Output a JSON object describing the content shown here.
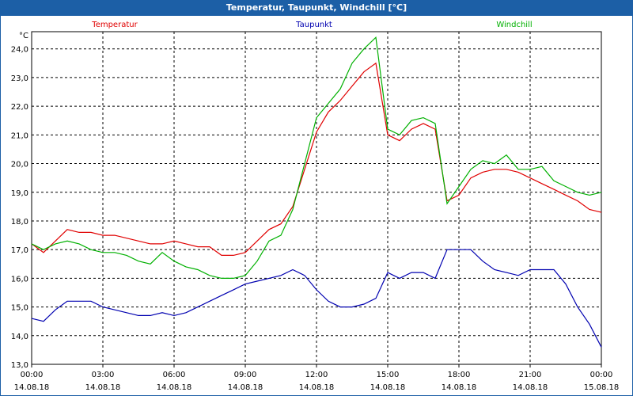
{
  "window": {
    "title": "Temperatur, Taupunkt, Windchill [°C]"
  },
  "chart_data": {
    "type": "line",
    "title": "Temperatur, Taupunkt, Windchill [°C]",
    "unit_label": "°C",
    "ylim": [
      13.0,
      24.6
    ],
    "y_ticks": [
      "13,0",
      "14,0",
      "15,0",
      "16,0",
      "17,0",
      "18,0",
      "19,0",
      "20,0",
      "21,0",
      "22,0",
      "23,0",
      "24,0"
    ],
    "x_ticks": [
      {
        "time": "00:00",
        "date": "14.08.18"
      },
      {
        "time": "03:00",
        "date": "14.08.18"
      },
      {
        "time": "06:00",
        "date": "14.08.18"
      },
      {
        "time": "09:00",
        "date": "14.08.18"
      },
      {
        "time": "12:00",
        "date": "14.08.18"
      },
      {
        "time": "15:00",
        "date": "14.08.18"
      },
      {
        "time": "18:00",
        "date": "14.08.18"
      },
      {
        "time": "21:00",
        "date": "14.08.18"
      },
      {
        "time": "00:00",
        "date": "15.08.18"
      }
    ],
    "x_hours": [
      0,
      0.5,
      1,
      1.5,
      2,
      2.5,
      3,
      3.5,
      4,
      4.5,
      5,
      5.5,
      6,
      6.5,
      7,
      7.5,
      8,
      8.5,
      9,
      9.5,
      10,
      10.5,
      11,
      11.5,
      12,
      12.5,
      13,
      13.5,
      14,
      14.5,
      15,
      15.5,
      16,
      16.5,
      17,
      17.5,
      18,
      18.5,
      19,
      19.5,
      20,
      20.5,
      21,
      21.5,
      22,
      22.5,
      23,
      23.5,
      24
    ],
    "series": [
      {
        "name": "Temperatur",
        "color": "#e00000",
        "values": [
          17.2,
          16.9,
          17.3,
          17.7,
          17.6,
          17.6,
          17.5,
          17.5,
          17.4,
          17.3,
          17.2,
          17.2,
          17.3,
          17.2,
          17.1,
          17.1,
          16.8,
          16.8,
          16.9,
          17.3,
          17.7,
          17.9,
          18.5,
          19.8,
          21.1,
          21.8,
          22.2,
          22.7,
          23.2,
          23.5,
          21.0,
          20.8,
          21.2,
          21.4,
          21.2,
          18.7,
          18.9,
          19.5,
          19.7,
          19.8,
          19.8,
          19.7,
          19.5,
          19.3,
          19.1,
          18.9,
          18.7,
          18.4,
          18.3
        ]
      },
      {
        "name": "Taupunkt",
        "color": "#0000b0",
        "values": [
          14.6,
          14.5,
          14.9,
          15.2,
          15.2,
          15.2,
          15.0,
          14.9,
          14.8,
          14.7,
          14.7,
          14.8,
          14.7,
          14.8,
          15.0,
          15.2,
          15.4,
          15.6,
          15.8,
          15.9,
          16.0,
          16.1,
          16.3,
          16.1,
          15.6,
          15.2,
          15.0,
          15.0,
          15.1,
          15.3,
          16.2,
          16.0,
          16.2,
          16.2,
          16.0,
          17.0,
          17.0,
          17.0,
          16.6,
          16.3,
          16.2,
          16.1,
          16.3,
          16.3,
          16.3,
          15.8,
          15.0,
          14.4,
          13.6
        ]
      },
      {
        "name": "Windchill",
        "color": "#00b000",
        "values": [
          17.2,
          17.0,
          17.2,
          17.3,
          17.2,
          17.0,
          16.9,
          16.9,
          16.8,
          16.6,
          16.5,
          16.9,
          16.6,
          16.4,
          16.3,
          16.1,
          16.0,
          16.0,
          16.1,
          16.6,
          17.3,
          17.5,
          18.4,
          20.0,
          21.6,
          22.1,
          22.6,
          23.5,
          24.0,
          24.4,
          21.2,
          21.0,
          21.5,
          21.6,
          21.4,
          18.6,
          19.2,
          19.8,
          20.1,
          20.0,
          20.3,
          19.8,
          19.8,
          19.9,
          19.4,
          19.2,
          19.0,
          18.9,
          19.0
        ]
      }
    ]
  }
}
